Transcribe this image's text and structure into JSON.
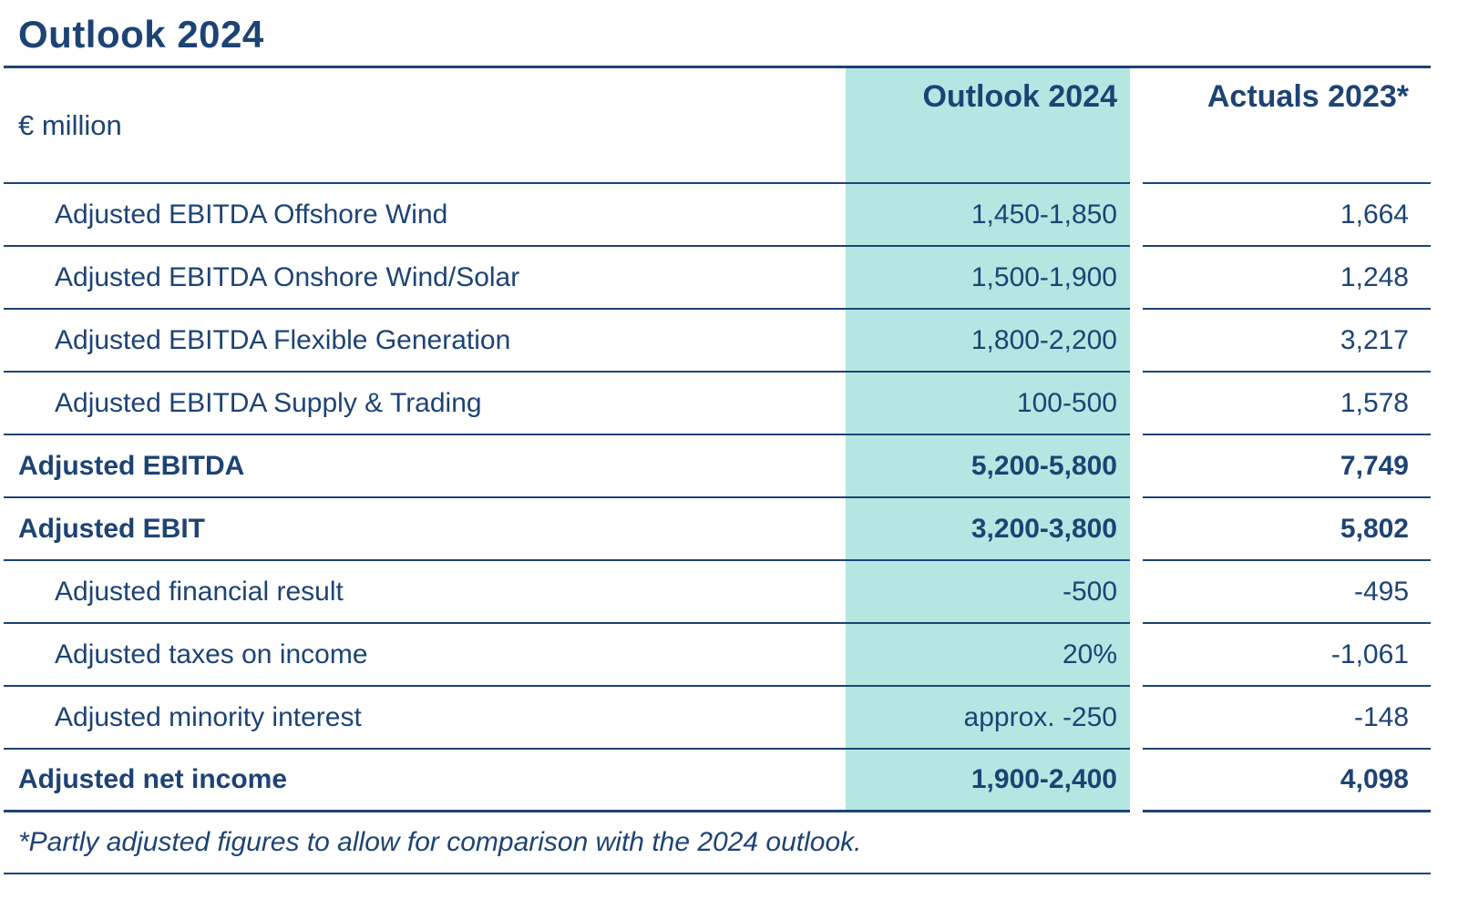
{
  "title": "Outlook 2024",
  "header": {
    "unit": "€ million",
    "outlook": "Outlook 2024",
    "actuals": "Actuals 2023*"
  },
  "rows": [
    {
      "label": "Adjusted EBITDA Offshore Wind",
      "outlook": "1,450-1,850",
      "actuals": "1,664"
    },
    {
      "label": "Adjusted EBITDA Onshore Wind/Solar",
      "outlook": "1,500-1,900",
      "actuals": "1,248"
    },
    {
      "label": "Adjusted EBITDA Flexible Generation",
      "outlook": "1,800-2,200",
      "actuals": "3,217"
    },
    {
      "label": "Adjusted EBITDA Supply & Trading",
      "outlook": "100-500",
      "actuals": "1,578"
    },
    {
      "label": "Adjusted EBITDA",
      "outlook": "5,200-5,800",
      "actuals": "7,749"
    },
    {
      "label": "Adjusted EBIT",
      "outlook": "3,200-3,800",
      "actuals": "5,802"
    },
    {
      "label": "Adjusted financial result",
      "outlook": "-500",
      "actuals": "-495"
    },
    {
      "label": "Adjusted taxes on income",
      "outlook": "20%",
      "actuals": "-1,061"
    },
    {
      "label": "Adjusted minority interest",
      "outlook": "approx. -250",
      "actuals": "-148"
    },
    {
      "label": "Adjusted net income",
      "outlook": "1,900-2,400",
      "actuals": "4,098"
    }
  ],
  "footnote": "*Partly adjusted figures to allow for comparison with the 2024 outlook.",
  "colors": {
    "navy_text": "#1d4374",
    "outlook_column_highlight": "#b4e7e1",
    "background": "#ffffff"
  }
}
